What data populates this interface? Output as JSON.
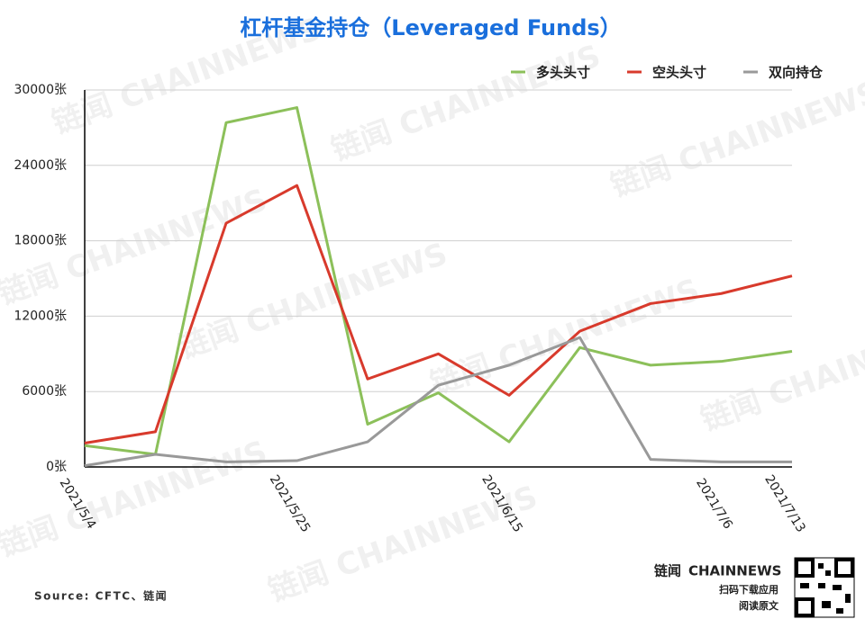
{
  "chart_data": {
    "type": "line",
    "title": "杠杆基金持仓（Leveraged Funds）",
    "categories": [
      "2021/5/4",
      null,
      null,
      "2021/5/25",
      null,
      null,
      "2021/6/15",
      null,
      null,
      "2021/7/6",
      "2021/7/13"
    ],
    "series": [
      {
        "name": "多头头寸",
        "color": "#8cc05a",
        "values": [
          1700,
          1000,
          27400,
          28600,
          3400,
          5900,
          2000,
          9500,
          8100,
          8400,
          9200
        ]
      },
      {
        "name": "空头头寸",
        "color": "#d83a2c",
        "values": [
          1900,
          2800,
          19400,
          22400,
          7000,
          9000,
          5700,
          10800,
          13000,
          13800,
          15200
        ]
      },
      {
        "name": "双向持仓",
        "color": "#999999",
        "values": [
          100,
          1000,
          400,
          500,
          2000,
          6500,
          8100,
          10300,
          600,
          400,
          400
        ]
      }
    ],
    "ylim": [
      0,
      30000
    ],
    "yticks": [
      {
        "value": 0,
        "label": "0张"
      },
      {
        "value": 6000,
        "label": "6000张"
      },
      {
        "value": 12000,
        "label": "12000张"
      },
      {
        "value": 18000,
        "label": "18000张"
      },
      {
        "value": 24000,
        "label": "24000张"
      },
      {
        "value": 30000,
        "label": "30000张"
      }
    ],
    "grid": true,
    "legend": "top-right"
  },
  "footer": {
    "source": "Source: CFTC、链闻",
    "brand_cn": "链闻",
    "brand_en": "CHAINNEWS",
    "download": "扫码下载应用",
    "read": "阅读原文"
  },
  "watermark": "链闻 CHAINNEWS"
}
